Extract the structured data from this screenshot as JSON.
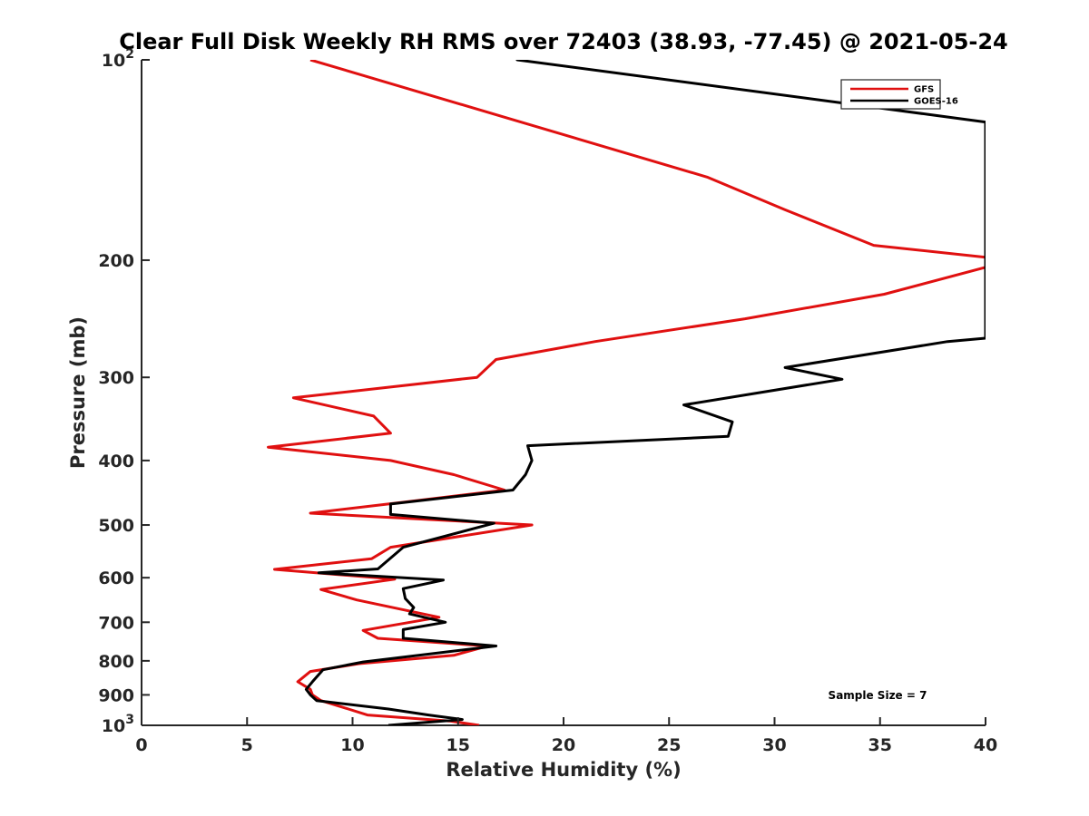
{
  "chart_data": {
    "type": "line",
    "title": "Clear Full Disk Weekly RH RMS over 72403 (38.93, -77.45) @ 2021-05-24",
    "xlabel": "Relative Humidity (%)",
    "ylabel": "Pressure (mb)",
    "xlim": [
      0,
      40
    ],
    "ylim": [
      100,
      1000
    ],
    "yscale": "log",
    "y_reversed": true,
    "x_ticks": [
      "0",
      "5",
      "10",
      "15",
      "20",
      "25",
      "30",
      "35",
      "40"
    ],
    "y_ticks": [
      {
        "value": 100,
        "base": "10",
        "exp": "2"
      },
      {
        "value": 200,
        "label": "200"
      },
      {
        "value": 300,
        "label": "300"
      },
      {
        "value": 400,
        "label": "400"
      },
      {
        "value": 500,
        "label": "500"
      },
      {
        "value": 600,
        "label": "600"
      },
      {
        "value": 700,
        "label": "700"
      },
      {
        "value": 800,
        "label": "800"
      },
      {
        "value": 900,
        "label": "900"
      },
      {
        "value": 1000,
        "base": "10",
        "exp": "3"
      }
    ],
    "legend_position": "top-right",
    "annotation": "Sample Size = 7",
    "series": [
      {
        "name": "GFS",
        "color": "#e01010",
        "points": [
          [
            8.0,
            100
          ],
          [
            26.8,
            150
          ],
          [
            30.5,
            168
          ],
          [
            34.7,
            190
          ],
          [
            40.0,
            198
          ],
          [
            40.0,
            205
          ],
          [
            35.2,
            225
          ],
          [
            28.6,
            245
          ],
          [
            21.5,
            265
          ],
          [
            16.8,
            282
          ],
          [
            15.9,
            300
          ],
          [
            7.2,
            322
          ],
          [
            11.0,
            343
          ],
          [
            11.8,
            364
          ],
          [
            6.0,
            382
          ],
          [
            11.8,
            400
          ],
          [
            14.8,
            420
          ],
          [
            17.2,
            443
          ],
          [
            12.2,
            463
          ],
          [
            8.0,
            480
          ],
          [
            18.5,
            500
          ],
          [
            11.8,
            540
          ],
          [
            10.9,
            562
          ],
          [
            6.3,
            583
          ],
          [
            12.0,
            603
          ],
          [
            8.5,
            625
          ],
          [
            10.2,
            648
          ],
          [
            14.1,
            688
          ],
          [
            10.5,
            720
          ],
          [
            11.2,
            740
          ],
          [
            16.4,
            760
          ],
          [
            14.8,
            785
          ],
          [
            10.3,
            808
          ],
          [
            8.0,
            830
          ],
          [
            7.4,
            860
          ],
          [
            8.0,
            883
          ],
          [
            8.1,
            900
          ],
          [
            8.5,
            918
          ],
          [
            9.8,
            945
          ],
          [
            10.7,
            965
          ],
          [
            14.6,
            985
          ],
          [
            16.0,
            1000
          ]
        ]
      },
      {
        "name": "GOES-16",
        "color": "#000000",
        "points": [
          [
            40.0,
            124
          ],
          [
            17.8,
            100
          ],
          [
            40.0,
            124
          ],
          [
            40.0,
            262
          ],
          [
            38.2,
            265
          ],
          [
            30.5,
            290
          ],
          [
            33.2,
            302
          ],
          [
            25.7,
            330
          ],
          [
            28.0,
            350
          ],
          [
            27.8,
            368
          ],
          [
            18.3,
            380
          ],
          [
            18.5,
            400
          ],
          [
            18.2,
            420
          ],
          [
            17.6,
            443
          ],
          [
            11.8,
            465
          ],
          [
            11.8,
            482
          ],
          [
            16.7,
            497
          ],
          [
            12.4,
            540
          ],
          [
            11.2,
            582
          ],
          [
            8.4,
            590
          ],
          [
            14.3,
            605
          ],
          [
            12.4,
            623
          ],
          [
            12.5,
            645
          ],
          [
            12.9,
            665
          ],
          [
            12.7,
            680
          ],
          [
            14.4,
            700
          ],
          [
            12.4,
            718
          ],
          [
            12.4,
            740
          ],
          [
            16.8,
            760
          ],
          [
            10.5,
            803
          ],
          [
            8.6,
            825
          ],
          [
            8.1,
            860
          ],
          [
            7.8,
            883
          ],
          [
            8.0,
            900
          ],
          [
            8.3,
            918
          ],
          [
            11.7,
            945
          ],
          [
            13.6,
            965
          ],
          [
            15.2,
            980
          ],
          [
            11.7,
            1000
          ]
        ]
      }
    ]
  }
}
